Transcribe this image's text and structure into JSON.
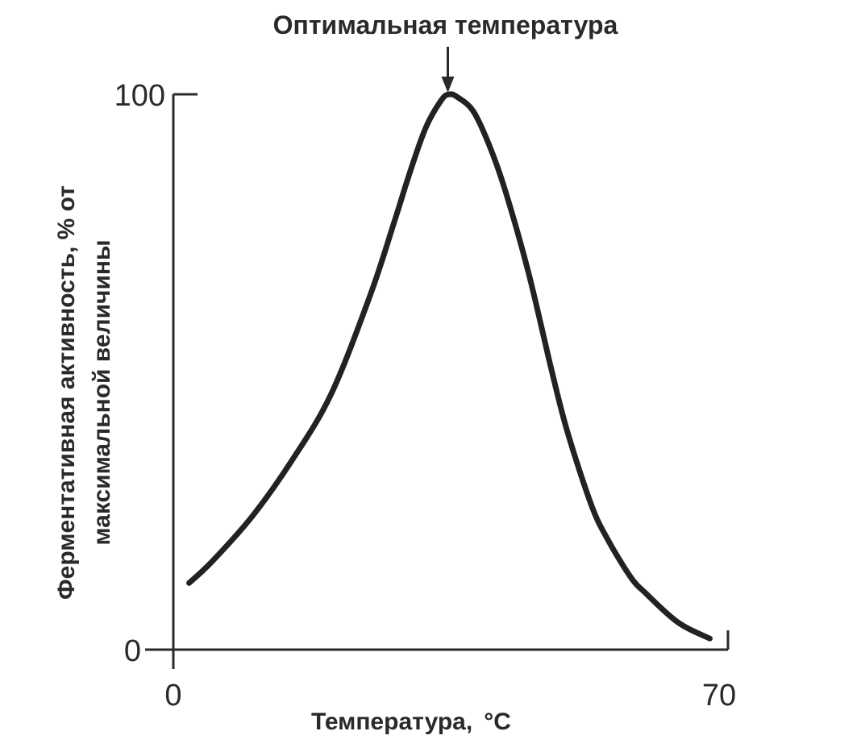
{
  "chart_data": {
    "type": "line",
    "title": "",
    "xlabel": "Температура,",
    "xlabel_unit": "°C",
    "ylabel_line1": "Ферментативная активность, % от",
    "ylabel_line2": "максимальной величины",
    "xlim": [
      0,
      70
    ],
    "ylim": [
      0,
      100
    ],
    "x_ticks": [
      {
        "value": 0,
        "label": "0"
      },
      {
        "value": 70,
        "label": "70"
      }
    ],
    "y_ticks": [
      {
        "value": 0,
        "label": "0"
      },
      {
        "value": 100,
        "label": "100"
      }
    ],
    "series": [
      {
        "x": [
          2,
          5,
          10,
          15,
          20,
          25,
          28,
          30,
          32,
          34,
          35,
          36,
          38,
          40,
          42,
          45,
          48,
          50,
          53,
          55,
          58,
          60,
          63,
          65,
          68
        ],
        "y": [
          12,
          16,
          24,
          34,
          46,
          64,
          77,
          86,
          94,
          99,
          100,
          99.5,
          97,
          91,
          83,
          68,
          50,
          39,
          26,
          20,
          13,
          10,
          6,
          4,
          2
        ]
      }
    ],
    "annotations": [
      {
        "text": "Оптимальная температура",
        "x": 35,
        "y": 100,
        "arrow": "down"
      }
    ],
    "grid": false,
    "line_color": "#222222"
  }
}
